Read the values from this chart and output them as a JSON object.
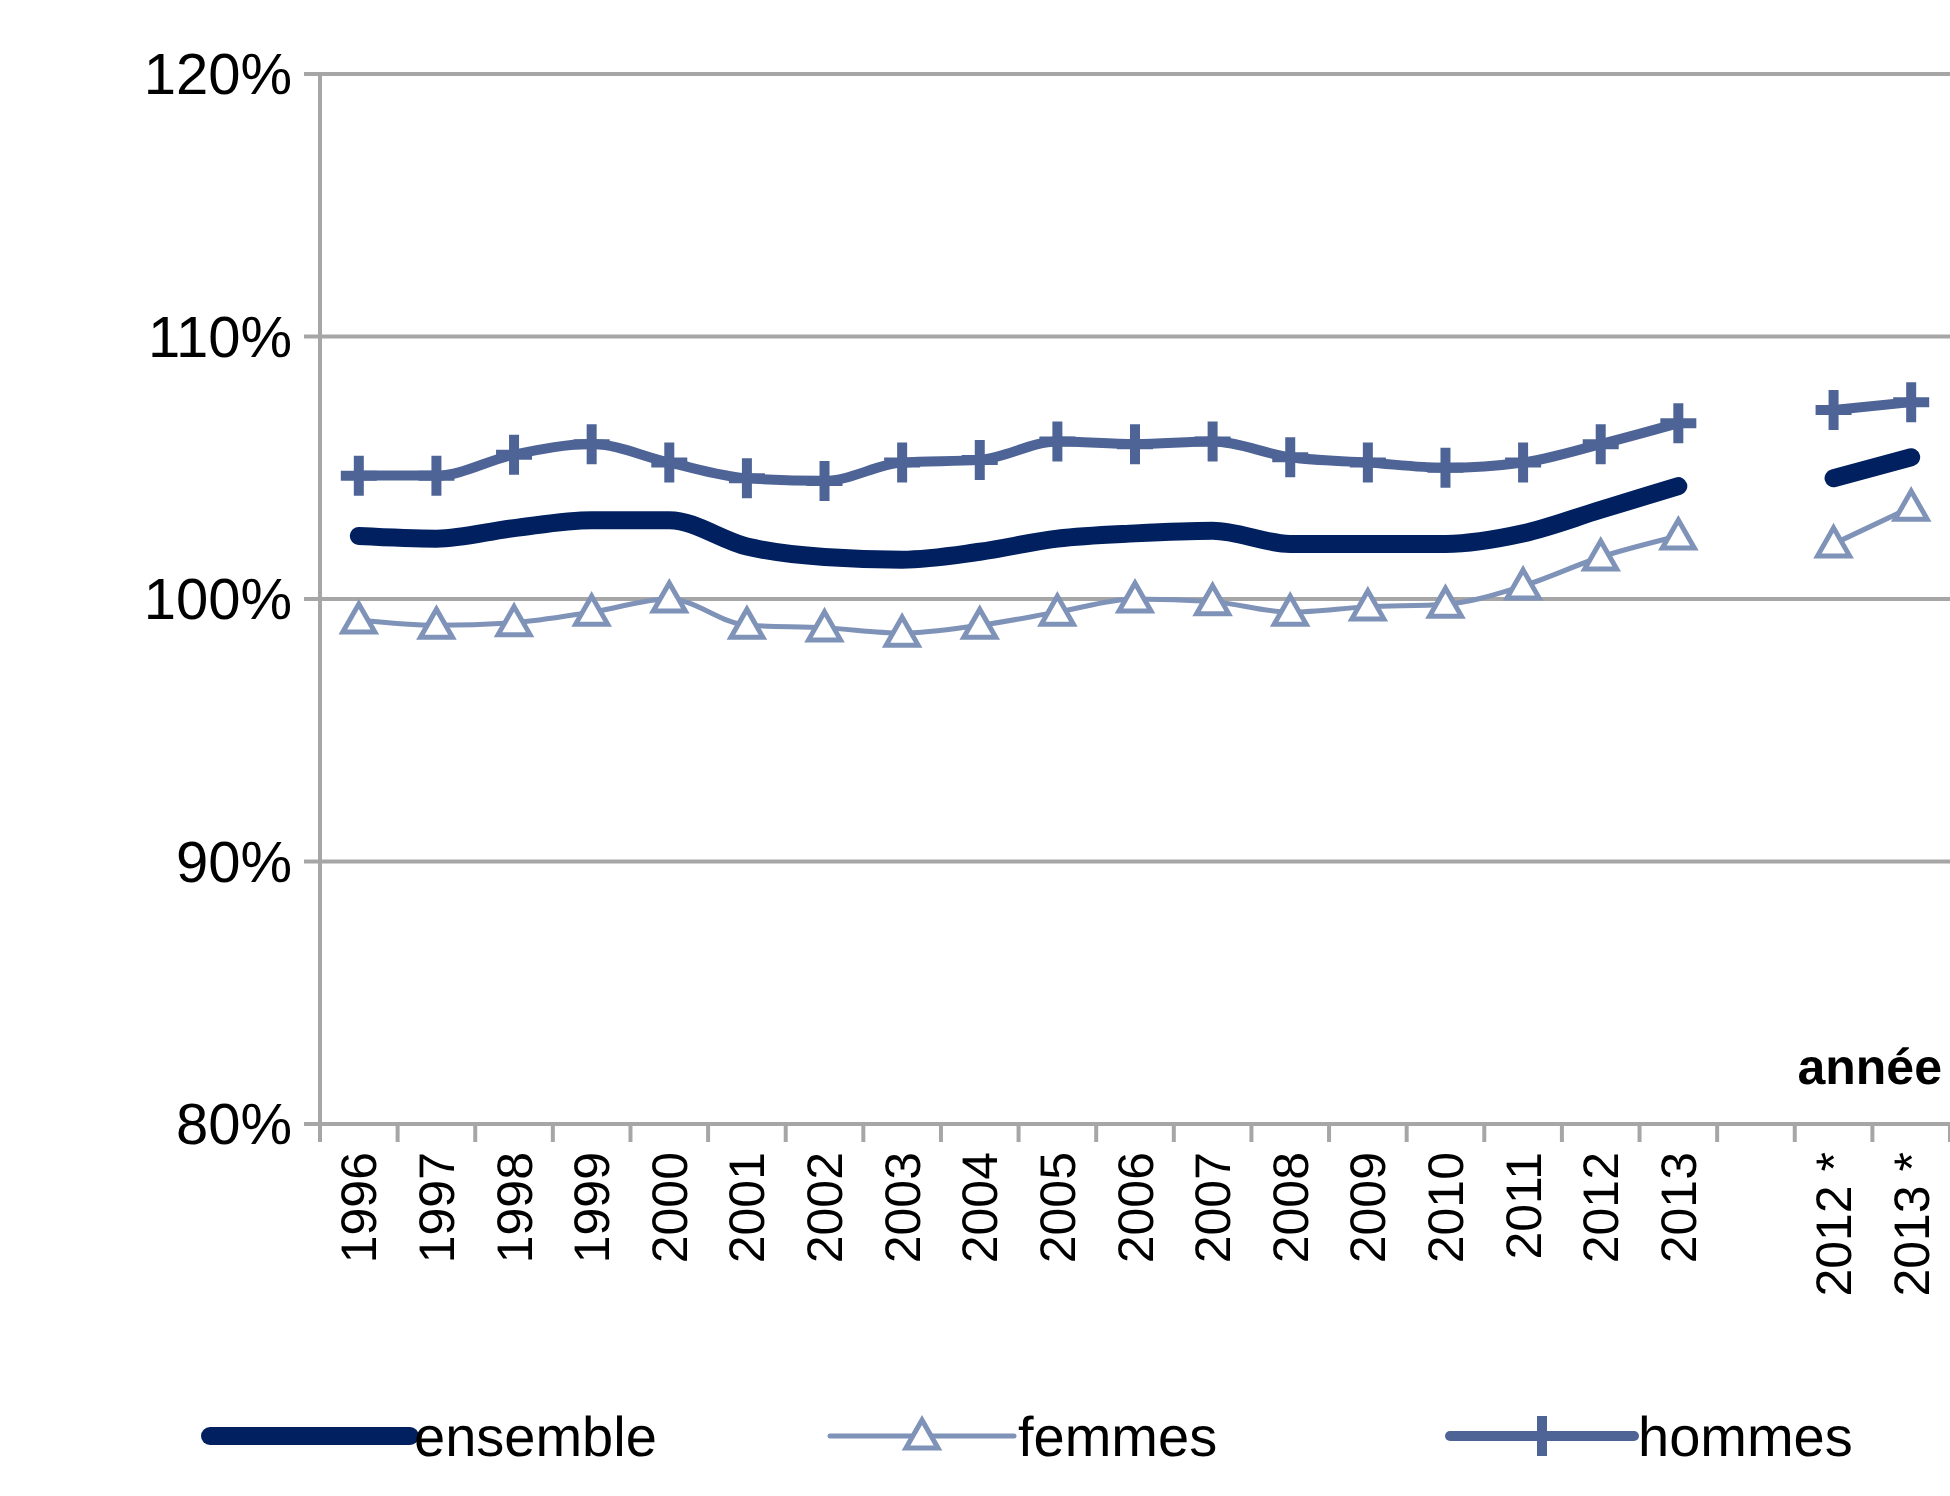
{
  "chart_data": {
    "type": "line",
    "xlabel": "année",
    "categories": [
      "1996",
      "1997",
      "1998",
      "1999",
      "2000",
      "2001",
      "2002",
      "2003",
      "2004",
      "2005",
      "2006",
      "2007",
      "2008",
      "2009",
      "2010",
      "2011",
      "2012",
      "2013",
      null,
      "2012 *",
      "2013 *"
    ],
    "ylim": [
      80,
      120
    ],
    "yticks": [
      {
        "value": 80,
        "label": "80%"
      },
      {
        "value": 90,
        "label": "90%"
      },
      {
        "value": 100,
        "label": "100%"
      },
      {
        "value": 110,
        "label": "110%"
      },
      {
        "value": 120,
        "label": "120%"
      }
    ],
    "grid": "y",
    "legend": "bottom",
    "series": [
      {
        "name": "ensemble",
        "color": "#002060",
        "marker": "none",
        "values": [
          102.4,
          102.3,
          102.7,
          103.0,
          103.0,
          102.0,
          101.6,
          101.5,
          101.8,
          102.3,
          102.5,
          102.6,
          102.1,
          102.1,
          102.1,
          102.5,
          103.4,
          104.3,
          null,
          104.6,
          105.4
        ]
      },
      {
        "name": "femmes",
        "color": "#7f92b8",
        "marker": "triangle",
        "values": [
          99.2,
          99.0,
          99.1,
          99.5,
          100.0,
          99.0,
          98.9,
          98.7,
          99.0,
          99.5,
          100.0,
          99.9,
          99.5,
          99.7,
          99.8,
          100.5,
          101.6,
          102.4,
          null,
          102.1,
          103.5
        ]
      },
      {
        "name": "hommes",
        "color": "#4f6496",
        "marker": "cross",
        "values": [
          104.7,
          104.7,
          105.5,
          105.9,
          105.2,
          104.6,
          104.5,
          105.2,
          105.3,
          106.0,
          105.9,
          106.0,
          105.4,
          105.2,
          105.0,
          105.2,
          105.9,
          106.7,
          null,
          107.2,
          107.5
        ]
      }
    ]
  }
}
